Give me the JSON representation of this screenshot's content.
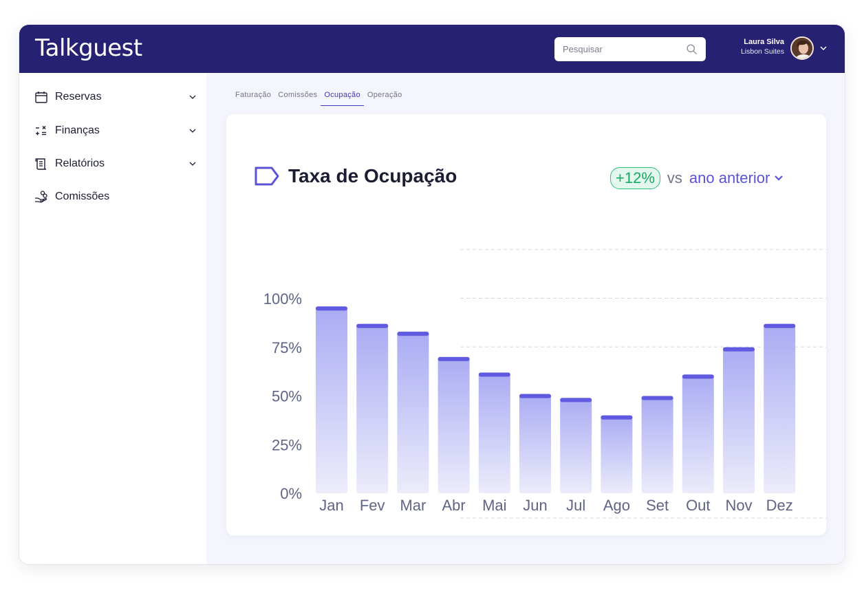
{
  "app": {
    "brand": "Talkguest"
  },
  "header": {
    "search_placeholder": "Pesquisar",
    "user_name": "Laura Silva",
    "user_org": "Lisbon Suites"
  },
  "sidebar": {
    "items": [
      {
        "label": "Reservas",
        "icon": "calendar-icon",
        "expandable": true
      },
      {
        "label": "Finanças",
        "icon": "calculator-icon",
        "expandable": true
      },
      {
        "label": "Relatórios",
        "icon": "report-icon",
        "expandable": true
      },
      {
        "label": "Comissões",
        "icon": "hand-coins-icon",
        "expandable": false
      }
    ]
  },
  "tabs": [
    {
      "label": "Faturação",
      "active": false
    },
    {
      "label": "Comissões",
      "active": false
    },
    {
      "label": "Ocupação",
      "active": true
    },
    {
      "label": "Operação",
      "active": false
    }
  ],
  "card": {
    "title": "Taxa de Ocupação",
    "badge": "+12%",
    "vs": "vs",
    "period": "ano anterior"
  },
  "colors": {
    "header": "#262173",
    "accent": "#5a53d8",
    "bar_cap": "#5f5ae0",
    "bar_top": "#aaabf3",
    "bar_bottom": "#ececfb",
    "badge_green": "#17a864"
  },
  "chart_data": {
    "type": "bar",
    "categories": [
      "Jan",
      "Fev",
      "Mar",
      "Abr",
      "Mai",
      "Jun",
      "Jul",
      "Ago",
      "Set",
      "Out",
      "Nov",
      "Dez"
    ],
    "values": [
      96,
      87,
      83,
      70,
      62,
      51,
      49,
      40,
      50,
      61,
      75,
      87
    ],
    "y_ticks": [
      "100%",
      "75%",
      "50%",
      "25%",
      "0%"
    ],
    "ylim": [
      0,
      100
    ],
    "grid": "dashed, partial"
  }
}
